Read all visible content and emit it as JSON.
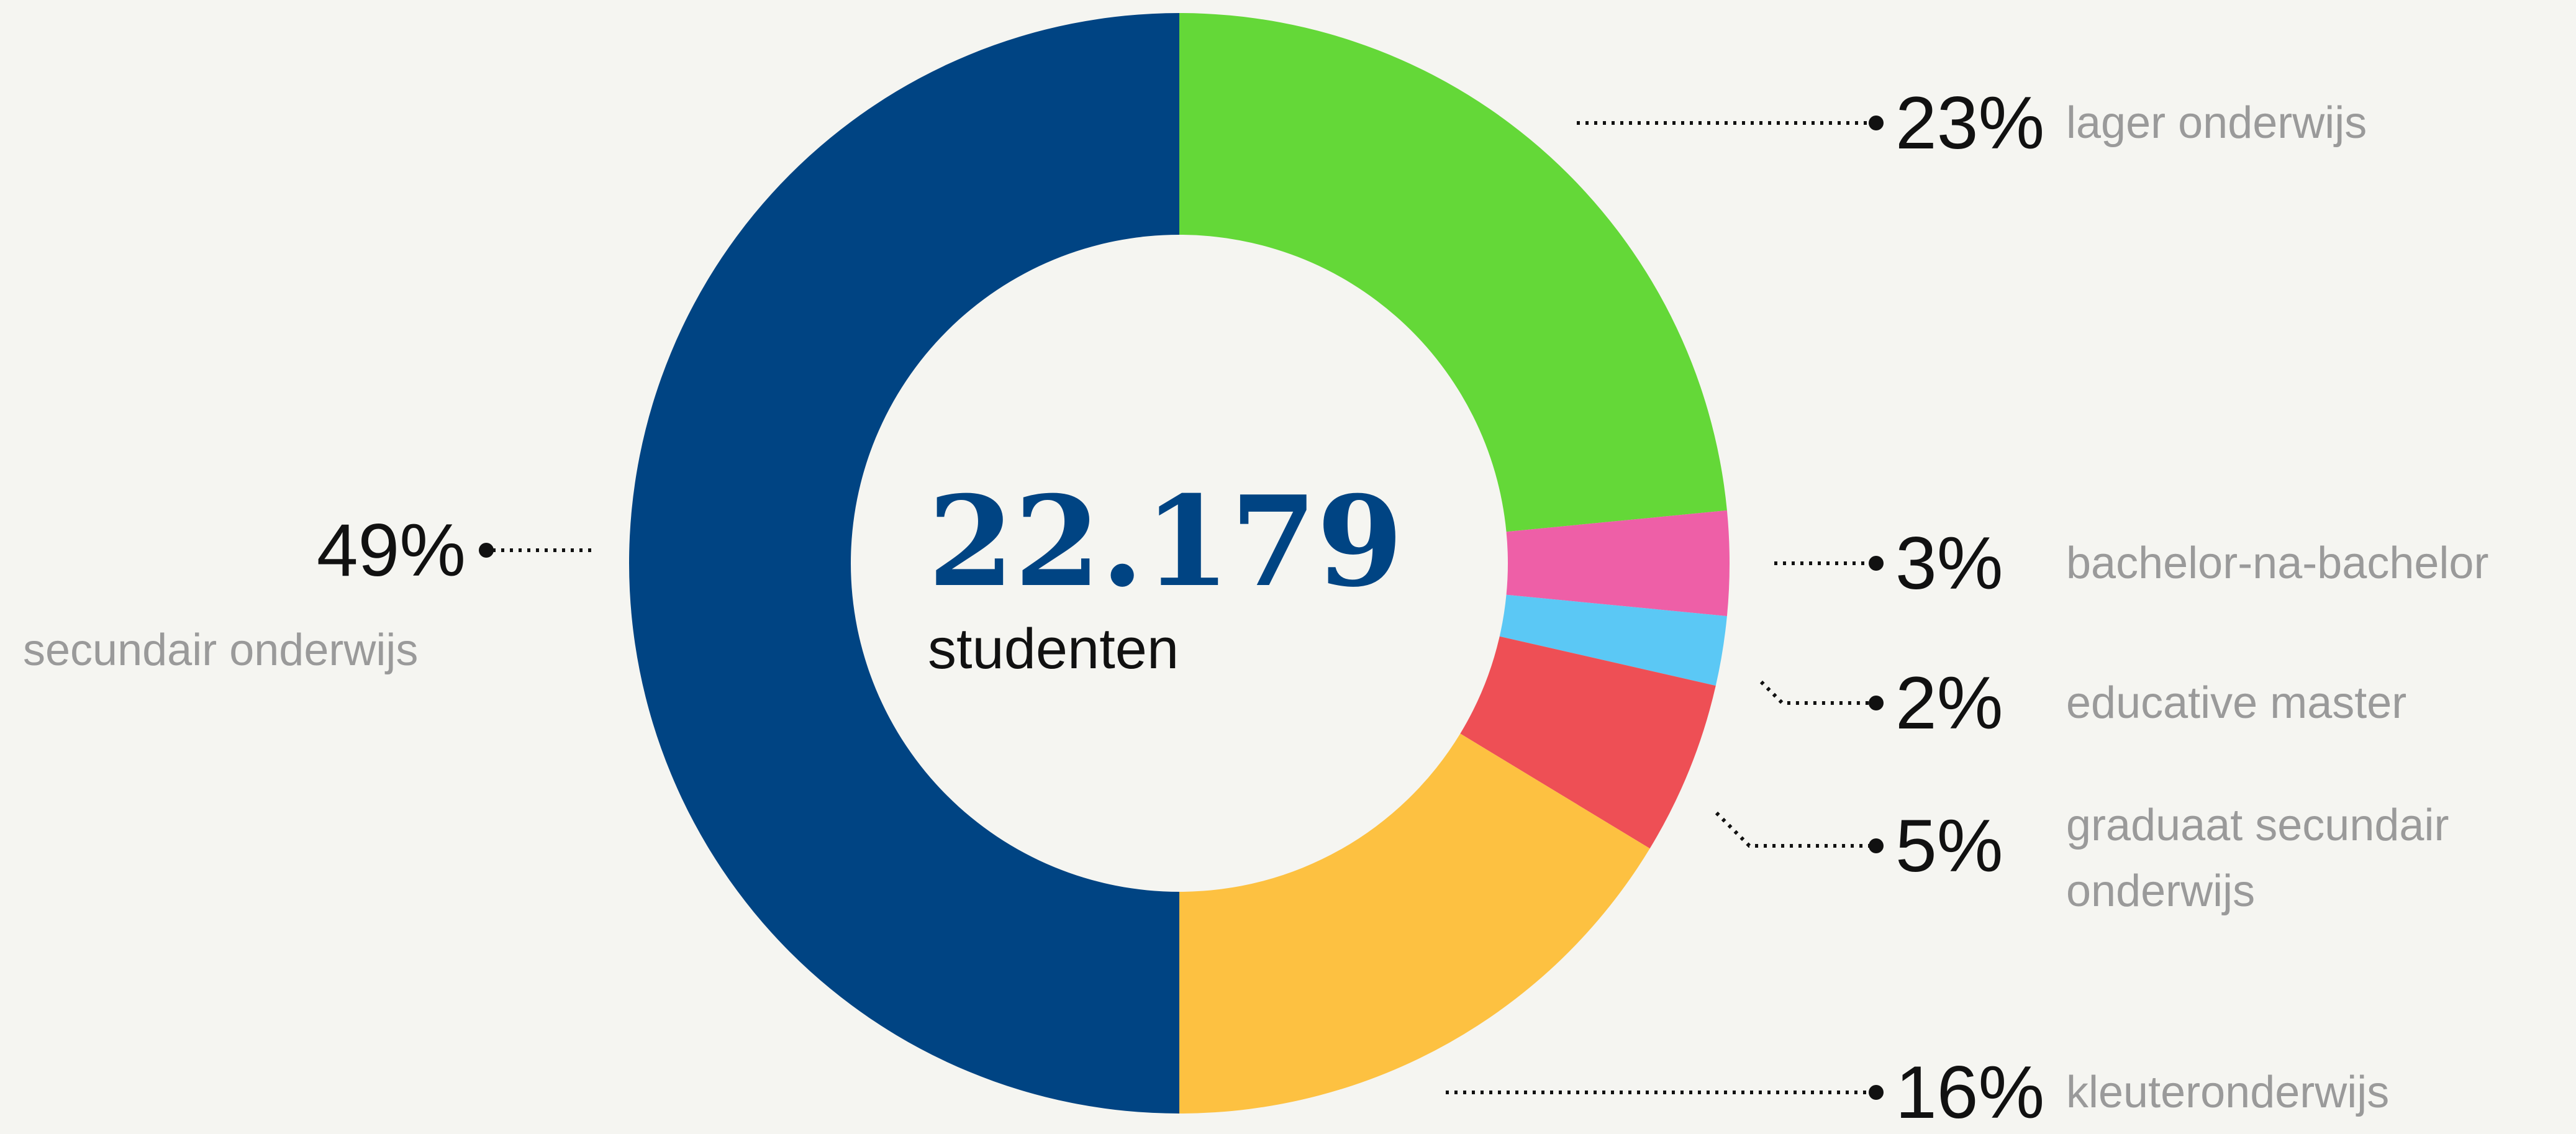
{
  "chart_data": {
    "type": "donut",
    "center_value": "22.179",
    "center_label": "studenten",
    "categories": [
      "lager onderwijs",
      "bachelor-na-bachelor",
      "educative master",
      "graduaat secundair onderwijs",
      "kleuteronderwijs",
      "secundair onderwijs"
    ],
    "values": [
      23,
      3,
      2,
      5,
      16,
      49
    ],
    "value_labels": [
      "23%",
      "3%",
      "2%",
      "5%",
      "16%",
      "49%"
    ],
    "colors": [
      "#64d838",
      "#ee5fa7",
      "#5bc8f5",
      "#ee4f55",
      "#fdc141",
      "#004483"
    ]
  }
}
